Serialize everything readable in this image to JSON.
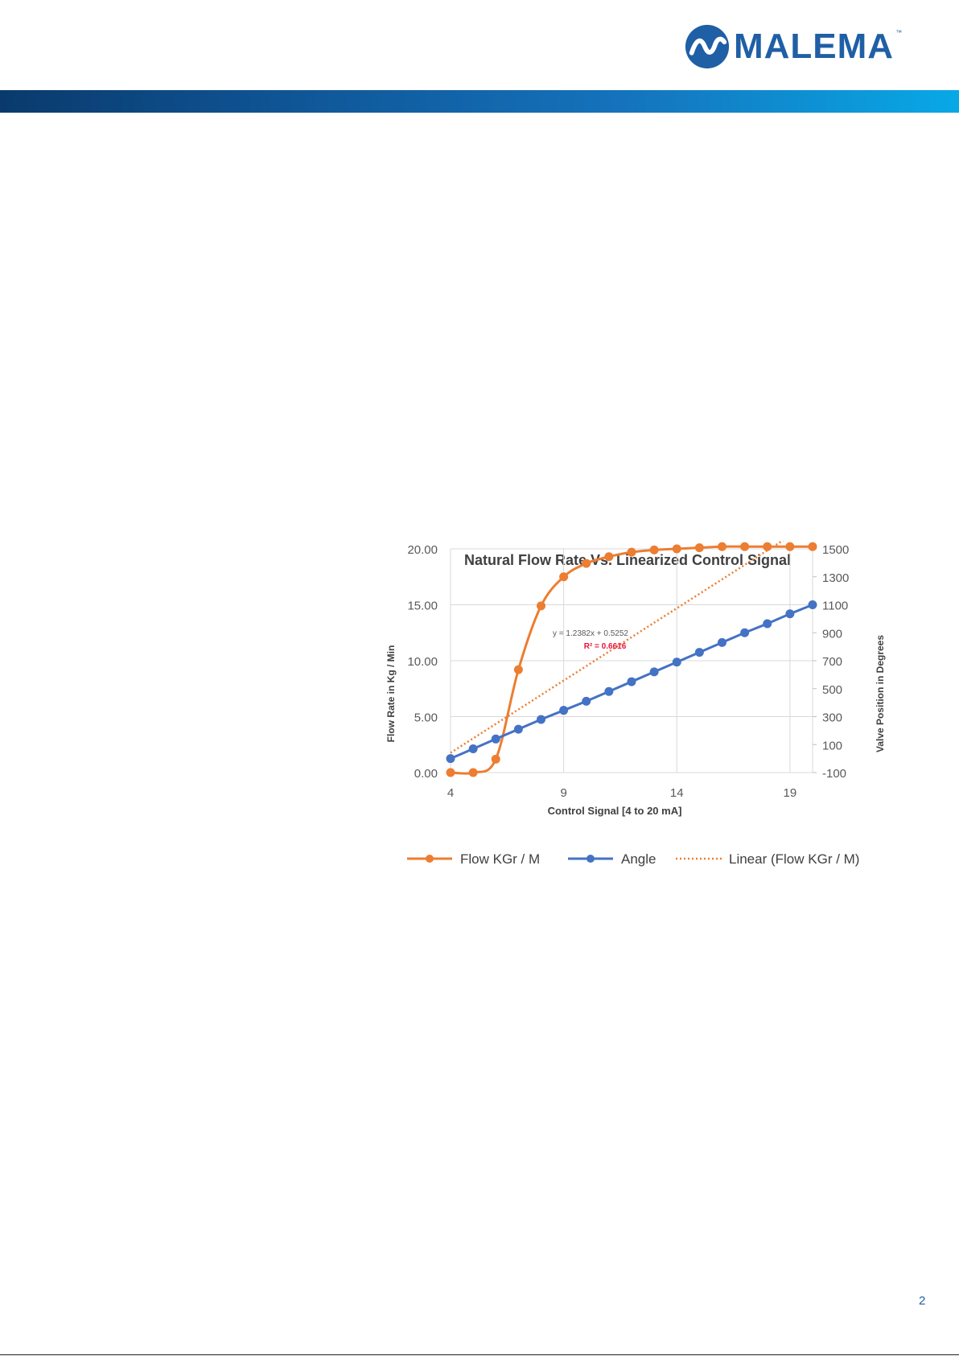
{
  "header": {
    "brand_name": "MALEMA",
    "trademark": "™"
  },
  "page_number": "2",
  "colors": {
    "brand": "#1f5fa5",
    "flow": "#ed7d31",
    "angle": "#4472c4",
    "r2": "#e8123c"
  },
  "chart_data": {
    "type": "line",
    "title": "Natural Flow Rate Vs. Linearized Control Signal",
    "xlabel": "Control Signal [4 to 20 mA]",
    "ylabel_left": "Flow Rate in Kg / Min",
    "ylabel_right": "Valve Position in Degrees",
    "xlim": [
      4,
      20
    ],
    "x_ticks": [
      "4",
      "9",
      "14",
      "19"
    ],
    "ylim_left": [
      0,
      20
    ],
    "y_ticks_left": [
      "0.00",
      "5.00",
      "10.00",
      "15.00",
      "20.00"
    ],
    "ylim_right": [
      -100,
      1500
    ],
    "y_ticks_right": [
      "-100",
      "100",
      "300",
      "500",
      "700",
      "900",
      "1100",
      "1300",
      "1500"
    ],
    "grid": true,
    "legend_position": "bottom",
    "x": [
      4,
      5,
      6,
      7,
      8,
      9,
      10,
      11,
      12,
      13,
      14,
      15,
      16,
      17,
      18,
      19,
      20
    ],
    "series": [
      {
        "name": "Flow KGr / M",
        "axis": "left",
        "values": [
          0.0,
          0.0,
          1.2,
          9.2,
          14.9,
          17.5,
          18.7,
          19.3,
          19.7,
          19.9,
          20.0,
          20.1,
          20.2,
          20.2,
          20.2,
          20.2,
          20.2
        ]
      },
      {
        "name": "Angle",
        "axis": "right",
        "values": [
          0,
          70,
          140,
          210,
          280,
          345,
          410,
          480,
          550,
          620,
          690,
          760,
          830,
          900,
          965,
          1035,
          1100
        ]
      }
    ],
    "trendline": {
      "name": "Linear (Flow KGr / M)",
      "of_series": "Flow KGr / M",
      "equation": "y = 1.2382x + 0.5252",
      "r_squared": "R² = 0.6616",
      "slope": 1.2382,
      "intercept": 0.5252
    }
  }
}
